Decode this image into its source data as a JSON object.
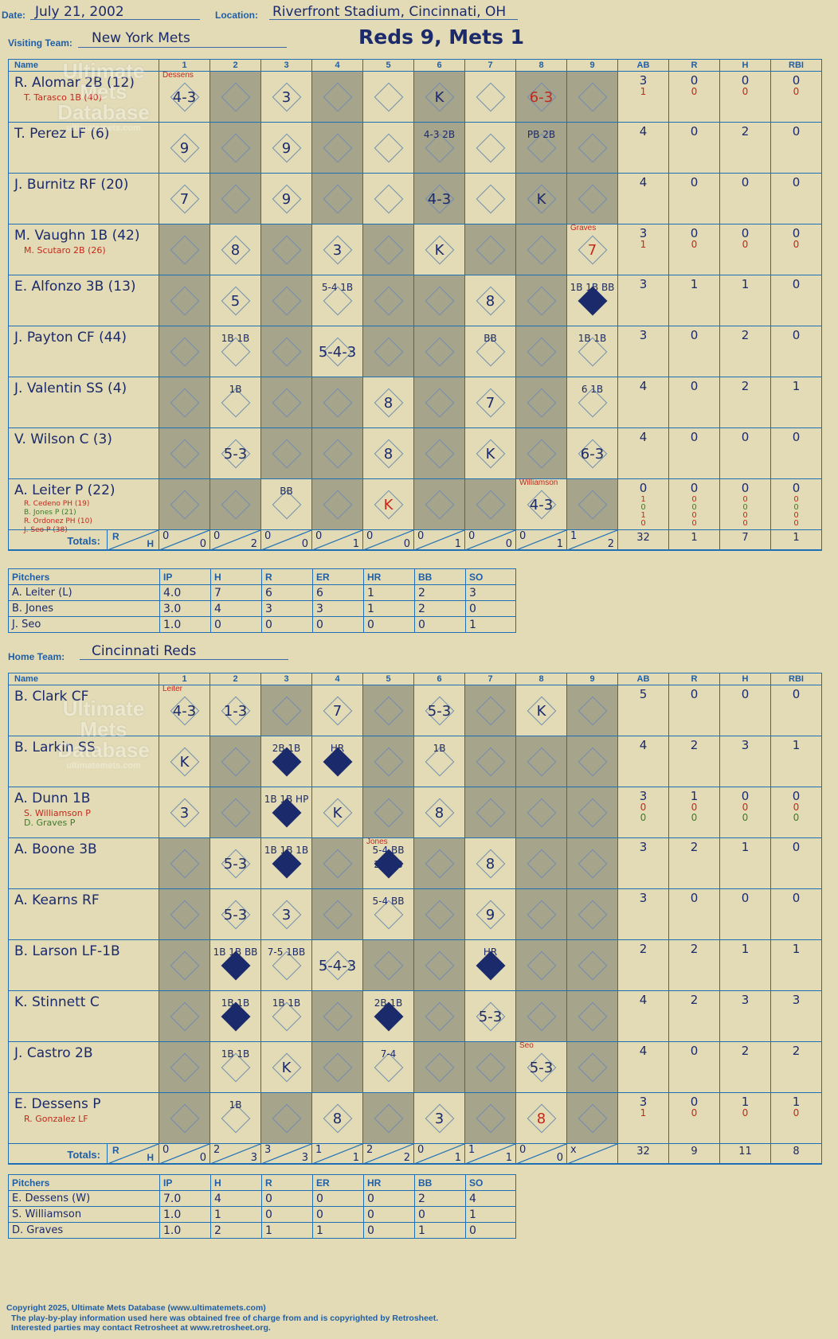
{
  "header": {
    "date_label": "Date:",
    "date": "July 21, 2002",
    "location_label": "Location:",
    "location": "Riverfront Stadium, Cincinnati, OH",
    "visiting_label": "Visiting Team:",
    "visiting_team": "New York Mets",
    "result": "Reds 9, Mets 1",
    "home_label": "Home Team:",
    "home_team": "Cincinnati Reds"
  },
  "columns": {
    "name": "Name",
    "innings": [
      "1",
      "2",
      "3",
      "4",
      "5",
      "6",
      "7",
      "8",
      "9"
    ],
    "stats": [
      "AB",
      "R",
      "H",
      "RBI"
    ]
  },
  "visitors": {
    "gray_pattern": [
      0,
      1,
      0,
      1,
      0,
      1,
      0,
      1,
      1
    ],
    "batters": [
      {
        "name": "R. Alomar 2B (12)",
        "subs": [
          {
            "text": "T. Tarasco 1B (40)",
            "color": "red"
          }
        ],
        "cells": [
          {
            "t": "4-3",
            "note": "Dessens"
          },
          {},
          {
            "t": "3"
          },
          {},
          {},
          {
            "t": "K"
          },
          {},
          {
            "t": "6-3",
            "red": true
          },
          {}
        ],
        "gray": [
          0,
          1,
          0,
          1,
          0,
          1,
          0,
          1,
          1
        ],
        "stats": [
          "3",
          "0",
          "0",
          "0"
        ],
        "sub_stats": [
          [
            "1",
            "0",
            "0",
            "0"
          ]
        ]
      },
      {
        "name": "T. Perez LF (6)",
        "subs": [],
        "cells": [
          {
            "t": "9"
          },
          {},
          {
            "t": "9"
          },
          {},
          {},
          {
            "t": "4-3 2B",
            "small": true
          },
          {},
          {
            "t": "PB 2B",
            "small": true
          },
          {}
        ],
        "gray": [
          0,
          1,
          0,
          1,
          0,
          1,
          0,
          1,
          1
        ],
        "stats": [
          "4",
          "0",
          "2",
          "0"
        ],
        "sub_stats": []
      },
      {
        "name": "J. Burnitz RF (20)",
        "subs": [],
        "cells": [
          {
            "t": "7"
          },
          {},
          {
            "t": "9"
          },
          {},
          {},
          {
            "t": "4-3"
          },
          {},
          {
            "t": "K"
          },
          {}
        ],
        "gray": [
          0,
          1,
          0,
          1,
          0,
          1,
          0,
          1,
          1
        ],
        "stats": [
          "4",
          "0",
          "0",
          "0"
        ],
        "sub_stats": []
      },
      {
        "name": "M. Vaughn 1B (42)",
        "subs": [
          {
            "text": "M. Scutaro 2B (26)",
            "color": "red"
          }
        ],
        "cells": [
          {},
          {
            "t": "8"
          },
          {},
          {
            "t": "3"
          },
          {},
          {
            "t": "K"
          },
          {},
          {},
          {
            "t": "7",
            "red": true,
            "note": "Graves"
          }
        ],
        "gray": [
          1,
          0,
          1,
          0,
          1,
          0,
          1,
          1,
          0
        ],
        "stats": [
          "3",
          "0",
          "0",
          "0"
        ],
        "sub_stats": [
          [
            "1",
            "0",
            "0",
            "0"
          ]
        ]
      },
      {
        "name": "E. Alfonzo 3B (13)",
        "subs": [],
        "cells": [
          {},
          {
            "t": "5"
          },
          {},
          {
            "t": "5-4 1B",
            "small": true
          },
          {},
          {},
          {
            "t": "8"
          },
          {},
          {
            "t": "1B 1B BB",
            "small": true,
            "filled": true
          }
        ],
        "gray": [
          1,
          0,
          1,
          0,
          1,
          1,
          0,
          1,
          0
        ],
        "stats": [
          "3",
          "1",
          "1",
          "0"
        ],
        "sub_stats": []
      },
      {
        "name": "J. Payton CF (44)",
        "subs": [],
        "cells": [
          {},
          {
            "t": "1B 1B",
            "small": true
          },
          {},
          {
            "t": "5-4-3"
          },
          {},
          {},
          {
            "t": "BB",
            "small": true
          },
          {},
          {
            "t": "1B 1B",
            "small": true
          }
        ],
        "gray": [
          1,
          0,
          1,
          0,
          1,
          1,
          0,
          1,
          0
        ],
        "stats": [
          "3",
          "0",
          "2",
          "0"
        ],
        "sub_stats": []
      },
      {
        "name": "J. Valentin SS (4)",
        "subs": [],
        "cells": [
          {},
          {
            "t": "1B",
            "small": true
          },
          {},
          {},
          {
            "t": "8"
          },
          {},
          {
            "t": "7"
          },
          {},
          {
            "t": "6 1B",
            "small": true
          }
        ],
        "gray": [
          1,
          0,
          1,
          1,
          0,
          1,
          0,
          1,
          0
        ],
        "stats": [
          "4",
          "0",
          "2",
          "1"
        ],
        "sub_stats": []
      },
      {
        "name": "V. Wilson C (3)",
        "subs": [],
        "cells": [
          {},
          {
            "t": "5-3"
          },
          {},
          {},
          {
            "t": "8"
          },
          {},
          {
            "t": "K"
          },
          {},
          {
            "t": "6-3"
          }
        ],
        "gray": [
          1,
          0,
          1,
          1,
          0,
          1,
          0,
          1,
          0
        ],
        "stats": [
          "4",
          "0",
          "0",
          "0"
        ],
        "sub_stats": []
      },
      {
        "name": "A. Leiter P (22)",
        "subs": [
          {
            "text": "R. Cedeno PH (19)",
            "color": "red"
          },
          {
            "text": "B. Jones P (21)",
            "color": "green"
          },
          {
            "text": "R. Ordonez PH (10)",
            "color": "red"
          },
          {
            "text": "J. Seo P (38)",
            "color": "red"
          }
        ],
        "cells": [
          {},
          {},
          {
            "t": "BB",
            "small": true
          },
          {},
          {
            "t": "K",
            "red": true
          },
          {},
          {},
          {
            "t": "4-3",
            "note": "Williamson"
          },
          {}
        ],
        "gray": [
          1,
          1,
          0,
          1,
          0,
          1,
          1,
          0,
          1
        ],
        "stats": [
          "0",
          "0",
          "0",
          "0"
        ],
        "sub_stats": [
          [
            "1",
            "0",
            "0",
            "0"
          ],
          [
            "0",
            "0",
            "0",
            "0"
          ],
          [
            "1",
            "0",
            "0",
            "0"
          ],
          [
            "0",
            "0",
            "0",
            "0"
          ]
        ]
      }
    ],
    "totals_label": "Totals:",
    "totals_rh": [
      "R",
      "H"
    ],
    "totals": [
      [
        "0",
        "0"
      ],
      [
        "0",
        "2"
      ],
      [
        "0",
        "0"
      ],
      [
        "0",
        "1"
      ],
      [
        "0",
        "0"
      ],
      [
        "0",
        "1"
      ],
      [
        "0",
        "0"
      ],
      [
        "0",
        "1"
      ],
      [
        "1",
        "2"
      ]
    ],
    "stat_totals": [
      "32",
      "1",
      "7",
      "1"
    ]
  },
  "visitor_pitchers": {
    "headers": [
      "Pitchers",
      "IP",
      "H",
      "R",
      "ER",
      "HR",
      "BB",
      "SO"
    ],
    "rows": [
      [
        "A. Leiter (L)",
        "4.0",
        "7",
        "6",
        "6",
        "1",
        "2",
        "3"
      ],
      [
        "B. Jones",
        "3.0",
        "4",
        "3",
        "3",
        "1",
        "2",
        "0"
      ],
      [
        "J. Seo",
        "1.0",
        "0",
        "0",
        "0",
        "0",
        "0",
        "1"
      ]
    ]
  },
  "home": {
    "batters": [
      {
        "name": "B. Clark CF",
        "subs": [],
        "cells": [
          {
            "t": "4-3",
            "note": "Leiter"
          },
          {
            "t": "1-3"
          },
          {},
          {
            "t": "7"
          },
          {},
          {
            "t": "5-3"
          },
          {},
          {
            "t": "K"
          },
          {}
        ],
        "gray": [
          0,
          0,
          1,
          0,
          1,
          0,
          1,
          0,
          1
        ],
        "stats": [
          "5",
          "0",
          "0",
          "0"
        ],
        "sub_stats": []
      },
      {
        "name": "B. Larkin SS",
        "subs": [],
        "cells": [
          {
            "t": "K"
          },
          {},
          {
            "t": "2B 1B",
            "small": true,
            "filled": true
          },
          {
            "t": "HR",
            "small": true,
            "filled": true
          },
          {},
          {
            "t": "1B",
            "small": true
          },
          {},
          {},
          {}
        ],
        "gray": [
          0,
          1,
          0,
          0,
          1,
          0,
          1,
          1,
          1
        ],
        "stats": [
          "4",
          "2",
          "3",
          "1"
        ],
        "sub_stats": []
      },
      {
        "name": "A. Dunn 1B",
        "subs": [
          {
            "text": "S. Williamson P",
            "color": "red"
          },
          {
            "text": "D. Graves P",
            "color": "green"
          }
        ],
        "cells": [
          {
            "t": "3"
          },
          {},
          {
            "t": "1B 1B HP",
            "small": true,
            "filled": true
          },
          {
            "t": "K"
          },
          {},
          {
            "t": "8"
          },
          {},
          {},
          {}
        ],
        "gray": [
          0,
          1,
          0,
          0,
          1,
          0,
          1,
          1,
          1
        ],
        "stats": [
          "3",
          "1",
          "0",
          "0"
        ],
        "sub_stats": [
          [
            "0",
            "0",
            "0",
            "0"
          ],
          [
            "0",
            "0",
            "0",
            "0"
          ]
        ]
      },
      {
        "name": "A. Boone 3B",
        "subs": [],
        "cells": [
          {},
          {
            "t": "5-3"
          },
          {
            "t": "1B 1B 1B",
            "small": true,
            "filled": true
          },
          {},
          {
            "t": "5-4 BB 2B BB",
            "small": true,
            "filled": true,
            "note": "Jones"
          },
          {},
          {
            "t": "8"
          },
          {},
          {}
        ],
        "gray": [
          1,
          0,
          0,
          1,
          0,
          1,
          0,
          1,
          1
        ],
        "stats": [
          "3",
          "2",
          "1",
          "0"
        ],
        "sub_stats": []
      },
      {
        "name": "A. Kearns RF",
        "subs": [],
        "cells": [
          {},
          {
            "t": "5-3"
          },
          {
            "t": "3"
          },
          {},
          {
            "t": "5-4 BB",
            "small": true
          },
          {},
          {
            "t": "9"
          },
          {},
          {}
        ],
        "gray": [
          1,
          0,
          0,
          1,
          0,
          1,
          0,
          1,
          1
        ],
        "stats": [
          "3",
          "0",
          "0",
          "0"
        ],
        "sub_stats": []
      },
      {
        "name": "B. Larson LF-1B",
        "subs": [],
        "cells": [
          {},
          {
            "t": "1B 1B BB",
            "small": true,
            "filled": true
          },
          {
            "t": "7-5 1BB",
            "small": true
          },
          {
            "t": "5-4-3"
          },
          {},
          {},
          {
            "t": "HR",
            "small": true,
            "filled": true
          },
          {},
          {}
        ],
        "gray": [
          1,
          0,
          0,
          0,
          1,
          1,
          0,
          1,
          1
        ],
        "stats": [
          "2",
          "2",
          "1",
          "1"
        ],
        "sub_stats": []
      },
      {
        "name": "K. Stinnett C",
        "subs": [],
        "cells": [
          {},
          {
            "t": "1B 1B",
            "small": true,
            "filled": true
          },
          {
            "t": "1B 1B",
            "small": true
          },
          {},
          {
            "t": "2B 1B",
            "small": true,
            "filled": true
          },
          {},
          {
            "t": "5-3"
          },
          {},
          {}
        ],
        "gray": [
          1,
          0,
          0,
          1,
          0,
          1,
          0,
          1,
          1
        ],
        "stats": [
          "4",
          "2",
          "3",
          "3"
        ],
        "sub_stats": []
      },
      {
        "name": "J. Castro 2B",
        "subs": [],
        "cells": [
          {},
          {
            "t": "1B 1B",
            "small": true
          },
          {
            "t": "K"
          },
          {},
          {
            "t": "7-4",
            "small": true
          },
          {},
          {},
          {
            "t": "5-3",
            "note": "Seo"
          },
          {}
        ],
        "gray": [
          1,
          0,
          0,
          1,
          0,
          1,
          1,
          0,
          1
        ],
        "stats": [
          "4",
          "0",
          "2",
          "2"
        ],
        "sub_stats": []
      },
      {
        "name": "E. Dessens P",
        "subs": [
          {
            "text": "R. Gonzalez LF",
            "color": "red"
          }
        ],
        "cells": [
          {},
          {
            "t": "1B",
            "small": true
          },
          {},
          {
            "t": "8"
          },
          {},
          {
            "t": "3"
          },
          {},
          {
            "t": "8",
            "red": true
          },
          {}
        ],
        "gray": [
          1,
          0,
          1,
          0,
          1,
          0,
          1,
          0,
          1
        ],
        "stats": [
          "3",
          "0",
          "1",
          "1"
        ],
        "sub_stats": [
          [
            "1",
            "0",
            "0",
            "0"
          ]
        ]
      }
    ],
    "totals_label": "Totals:",
    "totals_rh": [
      "R",
      "H"
    ],
    "totals": [
      [
        "0",
        "0"
      ],
      [
        "2",
        "3"
      ],
      [
        "3",
        "3"
      ],
      [
        "1",
        "1"
      ],
      [
        "2",
        "2"
      ],
      [
        "0",
        "1"
      ],
      [
        "1",
        "1"
      ],
      [
        "0",
        "0"
      ],
      [
        "x",
        ""
      ]
    ],
    "stat_totals": [
      "32",
      "9",
      "11",
      "8"
    ]
  },
  "home_pitchers": {
    "headers": [
      "Pitchers",
      "IP",
      "H",
      "R",
      "ER",
      "HR",
      "BB",
      "SO"
    ],
    "rows": [
      [
        "E. Dessens (W)",
        "7.0",
        "4",
        "0",
        "0",
        "0",
        "2",
        "4"
      ],
      [
        "S. Williamson",
        "1.0",
        "1",
        "0",
        "0",
        "0",
        "0",
        "1"
      ],
      [
        "D. Graves",
        "1.0",
        "2",
        "1",
        "1",
        "0",
        "1",
        "0"
      ]
    ]
  },
  "logo": {
    "line1": "Ultimate",
    "line2": "Mets",
    "line3": "Database",
    "url": "ultimatemets.com"
  },
  "footer": {
    "line1": "Copyright 2025, Ultimate Mets Database (www.ultimatemets.com)",
    "line2": "The play-by-play information used here was obtained free of charge from and is copyrighted by Retrosheet.",
    "line3": "Interested parties may contact Retrosheet at www.retrosheet.org."
  },
  "colors": {
    "grid": "#1f6fb5",
    "ink": "#1b2a6b",
    "paper": "#e3dbb5",
    "shade": "#a7a48c",
    "red": "#c4281c",
    "green": "#3b7d28"
  }
}
